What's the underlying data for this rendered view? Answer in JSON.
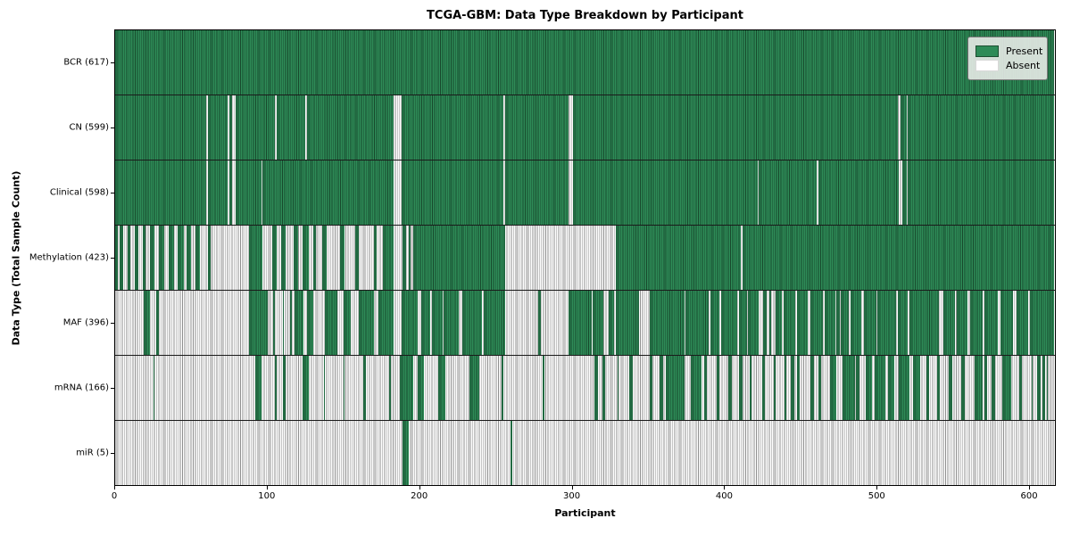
{
  "title": "TCGA-GBM: Data Type Breakdown by Participant",
  "xlabel": "Participant",
  "ylabel": "Data Type (Total Sample Count)",
  "legend": {
    "present_label": "Present",
    "absent_label": "Absent"
  },
  "colors": {
    "present_fill": "#2e8b57",
    "present_edge": "#17492c",
    "absent_fill": "#fdfdfd",
    "absent_edge": "#8f8f8f",
    "frame": "#000000"
  },
  "chart_data": {
    "type": "heatmap",
    "title": "TCGA-GBM: Data Type Breakdown by Participant",
    "xlabel": "Participant",
    "ylabel": "Data Type (Total Sample Count)",
    "legend_entries": [
      "Present",
      "Absent"
    ],
    "legend_position": "upper right",
    "x_ticks": [
      0,
      100,
      200,
      300,
      400,
      500,
      600
    ],
    "x_max": 617.5,
    "total_participants": 617,
    "cell_states": [
      "present",
      "absent"
    ],
    "rows": [
      {
        "label": "BCR (617)",
        "data_type": "BCR",
        "present_count": 617,
        "present_ranges": [
          [
            0,
            617
          ]
        ]
      },
      {
        "label": "CN (599)",
        "data_type": "CN",
        "present_count": 599,
        "present_ranges": [
          [
            0,
            60
          ],
          [
            61,
            74
          ],
          [
            75,
            77
          ],
          [
            79,
            105
          ],
          [
            106,
            125
          ],
          [
            126,
            183
          ],
          [
            188,
            255
          ],
          [
            256,
            298
          ],
          [
            301,
            514
          ],
          [
            516,
            520
          ],
          [
            521,
            617
          ]
        ]
      },
      {
        "label": "Clinical (598)",
        "data_type": "Clinical",
        "present_count": 598,
        "present_ranges": [
          [
            0,
            60
          ],
          [
            61,
            74
          ],
          [
            75,
            77
          ],
          [
            79,
            96
          ],
          [
            97,
            183
          ],
          [
            188,
            255
          ],
          [
            256,
            298
          ],
          [
            301,
            422
          ],
          [
            423,
            461
          ],
          [
            462,
            515
          ],
          [
            517,
            520
          ],
          [
            521,
            617
          ]
        ]
      },
      {
        "label": "Methylation (423)",
        "data_type": "Methylation",
        "present_count": 423,
        "present_ranges": [
          [
            0,
            2
          ],
          [
            3,
            5
          ],
          [
            8,
            10
          ],
          [
            13,
            15
          ],
          [
            18,
            20
          ],
          [
            23,
            26
          ],
          [
            29,
            32
          ],
          [
            35,
            39
          ],
          [
            41,
            45
          ],
          [
            47,
            50
          ],
          [
            53,
            56
          ],
          [
            61,
            63
          ],
          [
            88,
            97
          ],
          [
            103,
            106
          ],
          [
            109,
            112
          ],
          [
            117,
            120
          ],
          [
            123,
            127
          ],
          [
            130,
            132
          ],
          [
            136,
            139
          ],
          [
            148,
            151
          ],
          [
            158,
            160
          ],
          [
            170,
            172
          ],
          [
            176,
            183
          ],
          [
            189,
            191
          ],
          [
            193,
            194
          ],
          [
            196,
            256
          ],
          [
            329,
            411
          ],
          [
            412,
            617
          ]
        ]
      },
      {
        "label": "MAF (396)",
        "data_type": "MAF",
        "present_count": 396,
        "present_ranges": [
          [
            19,
            23
          ],
          [
            27,
            29
          ],
          [
            88,
            100
          ],
          [
            104,
            105
          ],
          [
            110,
            111
          ],
          [
            115,
            116
          ],
          [
            118,
            124
          ],
          [
            126,
            130
          ],
          [
            138,
            146
          ],
          [
            150,
            155
          ],
          [
            160,
            170
          ],
          [
            173,
            183
          ],
          [
            188,
            199
          ],
          [
            201,
            207
          ],
          [
            208,
            215
          ],
          [
            216,
            226
          ],
          [
            228,
            241
          ],
          [
            242,
            256
          ],
          [
            278,
            280
          ],
          [
            298,
            313
          ],
          [
            314,
            321
          ],
          [
            324,
            328
          ],
          [
            329,
            344
          ],
          [
            351,
            374
          ],
          [
            375,
            390
          ],
          [
            391,
            397
          ],
          [
            398,
            409
          ],
          [
            410,
            415
          ],
          [
            416,
            423
          ],
          [
            426,
            428
          ],
          [
            430,
            431
          ],
          [
            434,
            438
          ],
          [
            439,
            447
          ],
          [
            448,
            455
          ],
          [
            457,
            465
          ],
          [
            466,
            473
          ],
          [
            474,
            476
          ],
          [
            477,
            482
          ],
          [
            483,
            490
          ],
          [
            492,
            500
          ],
          [
            501,
            513
          ],
          [
            514,
            521
          ],
          [
            522,
            541
          ],
          [
            544,
            552
          ],
          [
            553,
            560
          ],
          [
            562,
            570
          ],
          [
            571,
            580
          ],
          [
            582,
            590
          ],
          [
            592,
            600
          ],
          [
            601,
            617
          ]
        ]
      },
      {
        "label": "mRNA (166)",
        "data_type": "mRNA",
        "present_count": 166,
        "present_ranges": [
          [
            25,
            26
          ],
          [
            92,
            96
          ],
          [
            105,
            106
          ],
          [
            110,
            112
          ],
          [
            123,
            127
          ],
          [
            137,
            138
          ],
          [
            150,
            151
          ],
          [
            163,
            165
          ],
          [
            180,
            181
          ],
          [
            187,
            196
          ],
          [
            199,
            203
          ],
          [
            212,
            217
          ],
          [
            233,
            239
          ],
          [
            254,
            255
          ],
          [
            281,
            282
          ],
          [
            315,
            317
          ],
          [
            320,
            322
          ],
          [
            330,
            331
          ],
          [
            338,
            340
          ],
          [
            351,
            353
          ],
          [
            358,
            360
          ],
          [
            362,
            374
          ],
          [
            378,
            385
          ],
          [
            387,
            389
          ],
          [
            395,
            397
          ],
          [
            403,
            405
          ],
          [
            410,
            412
          ],
          [
            417,
            418
          ],
          [
            425,
            427
          ],
          [
            433,
            434
          ],
          [
            440,
            441
          ],
          [
            444,
            446
          ],
          [
            448,
            450
          ],
          [
            457,
            459
          ],
          [
            462,
            464
          ],
          [
            470,
            474
          ],
          [
            478,
            486
          ],
          [
            487,
            489
          ],
          [
            493,
            497
          ],
          [
            499,
            506
          ],
          [
            508,
            512
          ],
          [
            515,
            522
          ],
          [
            524,
            529
          ],
          [
            533,
            535
          ],
          [
            540,
            542
          ],
          [
            548,
            550
          ],
          [
            556,
            558
          ],
          [
            565,
            570
          ],
          [
            571,
            573
          ],
          [
            576,
            578
          ],
          [
            583,
            589
          ],
          [
            594,
            596
          ],
          [
            602,
            603
          ],
          [
            606,
            608
          ],
          [
            609,
            611
          ],
          [
            612,
            613
          ]
        ]
      },
      {
        "label": "miR (5)",
        "data_type": "miR",
        "present_count": 5,
        "present_ranges": [
          [
            189,
            193
          ],
          [
            260,
            261
          ]
        ]
      }
    ]
  }
}
